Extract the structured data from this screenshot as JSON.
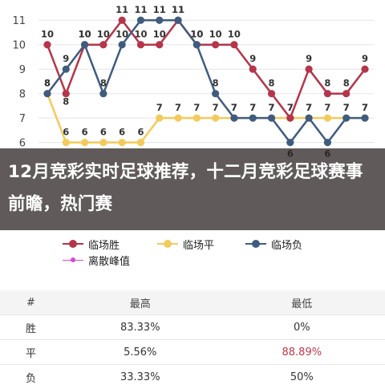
{
  "banner": {
    "title": "12月竞彩实时足球推荐，十二月竞彩足球赛事前瞻，热门赛"
  },
  "chart_data": {
    "type": "line",
    "y_ticks": [
      6,
      7,
      8,
      9,
      10,
      11
    ],
    "ylim": [
      5.3,
      11.5
    ],
    "grid": true,
    "legend_position": "bottom-left",
    "series": [
      {
        "name": "临场胜",
        "color": "#b5354a",
        "values": [
          10,
          8,
          10,
          10,
          11,
          10,
          10,
          11,
          10,
          10,
          10,
          9,
          8,
          7,
          9,
          8,
          8,
          9
        ]
      },
      {
        "name": "临场平",
        "color": "#f4ca5a",
        "values": [
          8,
          6,
          6,
          6,
          6,
          6,
          7,
          7,
          7,
          7,
          7,
          7,
          7,
          7,
          7,
          7,
          7,
          7
        ]
      },
      {
        "name": "临场负",
        "color": "#3f5c80",
        "values": [
          8,
          9,
          10,
          8,
          10,
          11,
          11,
          11,
          10,
          8,
          7,
          7,
          7,
          6,
          7,
          6,
          7,
          7
        ]
      },
      {
        "name": "离散峰值",
        "color": "#d64ad0",
        "values": []
      }
    ]
  },
  "table": {
    "headers": [
      "#",
      "最高",
      "最低"
    ],
    "rows": [
      {
        "label": "胜",
        "high": "83.33%",
        "low": "0%"
      },
      {
        "label": "平",
        "high": "5.56%",
        "low": "88.89%"
      },
      {
        "label": "负",
        "high": "33.33%",
        "low": "50%"
      }
    ]
  }
}
